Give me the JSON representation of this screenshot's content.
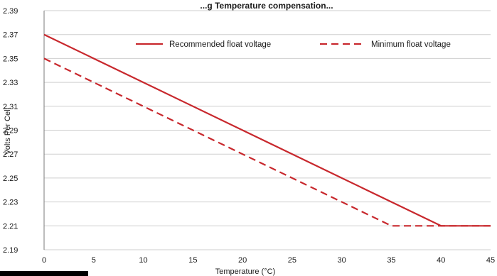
{
  "chart_data": {
    "type": "line",
    "title": "...g Temperature compensation...",
    "xlabel": "Temperature (°C)",
    "ylabel": "Volts Per Cell",
    "xlim": [
      0,
      45
    ],
    "ylim": [
      2.19,
      2.39
    ],
    "x_ticks": [
      0,
      5,
      10,
      15,
      20,
      25,
      30,
      35,
      40,
      45
    ],
    "y_ticks": [
      "2.19",
      "2.21",
      "2.23",
      "2.25",
      "2.27",
      "2.29",
      "2.31",
      "2.33",
      "2.35",
      "2.37",
      "2.39"
    ],
    "grid": "horizontal",
    "legend_position": "top-right",
    "series": [
      {
        "name": "Recommended float voltage",
        "style": "solid",
        "color": "#c8282d",
        "points": [
          [
            0,
            2.37
          ],
          [
            40,
            2.21
          ],
          [
            45,
            2.21
          ]
        ]
      },
      {
        "name": "Minimum float voltage",
        "style": "dashed",
        "color": "#c8282d",
        "points": [
          [
            0,
            2.35
          ],
          [
            35,
            2.21
          ],
          [
            45,
            2.21
          ]
        ]
      }
    ]
  }
}
